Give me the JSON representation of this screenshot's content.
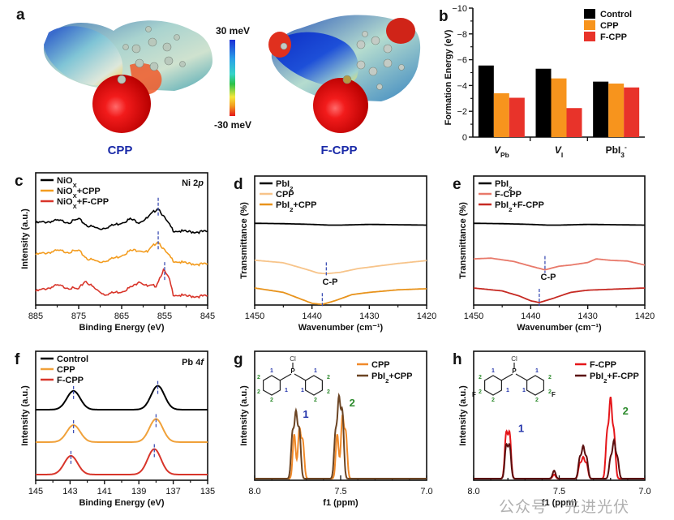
{
  "figure": {
    "watermark": "公众号 · 先进光伏",
    "panel_a": {
      "letter": "a",
      "colorbar_max": "30 meV",
      "colorbar_min": "-30 meV",
      "molecules": [
        "CPP",
        "F-CPP"
      ],
      "colormap": [
        "#1b2fd6",
        "#2aa0e8",
        "#36d3c8",
        "#2bc24a",
        "#f4e73a",
        "#f39a1e",
        "#e5161a"
      ]
    }
  },
  "chart_data": [
    {
      "panel": "b",
      "type": "bar",
      "title": "",
      "xlabel": "",
      "ylabel": "Formation Energy (eV)",
      "ylim": [
        0,
        -10
      ],
      "yticks": [
        "0",
        "-2",
        "-4",
        "-6",
        "-8",
        "-10"
      ],
      "categories": [
        "V_Pb",
        "V_I",
        "PbI3-"
      ],
      "category_labels": [
        {
          "main": "V",
          "sub": "Pb",
          "sup": ""
        },
        {
          "main": "V",
          "sub": "I",
          "sup": ""
        },
        {
          "main": "PbI",
          "sub": "3",
          "sup": "-"
        }
      ],
      "series": [
        {
          "name": "Control",
          "color": "#000000",
          "values": [
            -5.55,
            -5.3,
            -4.3
          ]
        },
        {
          "name": "CPP",
          "color": "#f7941d",
          "values": [
            -3.4,
            -4.55,
            -4.15
          ]
        },
        {
          "name": "F-CPP",
          "color": "#e8332a",
          "values": [
            -3.05,
            -2.25,
            -3.85
          ]
        }
      ],
      "legend": "top-right"
    },
    {
      "panel": "c",
      "type": "line",
      "xlabel": "Binding Energy (eV)",
      "ylabel": "Intensity (a.u.)",
      "annotation": "Ni 2p",
      "xlim": [
        885,
        845
      ],
      "xticks": [
        "885",
        "875",
        "865",
        "855",
        "845"
      ],
      "series": [
        {
          "name": "NiOx",
          "color": "#000000",
          "offset": 2,
          "peak_marker": 856.5,
          "x": [
            885,
            880,
            877,
            875,
            873,
            870,
            866,
            863,
            861,
            859,
            857,
            856.5,
            855,
            853,
            850,
            845
          ],
          "y": [
            0.3,
            0.35,
            0.32,
            0.38,
            0.25,
            0.18,
            0.28,
            0.38,
            0.32,
            0.4,
            0.58,
            0.62,
            0.4,
            0.15,
            0.12,
            0.12
          ]
        },
        {
          "name": "NiOx+CPP",
          "color": "#f39c1f",
          "offset": 1,
          "peak_marker": 856.5,
          "x": [
            885,
            880,
            877,
            875,
            873,
            870,
            866,
            863,
            861,
            859,
            857,
            856.5,
            855,
            853,
            850,
            845
          ],
          "y": [
            0.3,
            0.38,
            0.36,
            0.38,
            0.22,
            0.15,
            0.25,
            0.38,
            0.4,
            0.35,
            0.55,
            0.58,
            0.38,
            0.18,
            0.12,
            0.1
          ]
        },
        {
          "name": "NiOx+F-CPP",
          "color": "#d8352a",
          "offset": 0,
          "peak_marker": 855.0,
          "x": [
            885,
            880,
            877,
            875,
            873.5,
            871,
            869,
            865,
            862,
            861,
            859,
            857,
            855.3,
            854,
            853,
            850,
            845
          ],
          "y": [
            0.18,
            0.3,
            0.25,
            0.22,
            0.4,
            0.22,
            0.12,
            0.18,
            0.3,
            0.4,
            0.28,
            0.3,
            0.62,
            0.45,
            0.12,
            0.08,
            0.08
          ]
        }
      ],
      "legend": "top-left"
    },
    {
      "panel": "d",
      "type": "line",
      "xlabel": "Wavenumber (cm-1)",
      "ylabel": "Transmittance (%)",
      "annotation": "C-P",
      "xlim": [
        1450,
        1420
      ],
      "xticks": [
        "1450",
        "1440",
        "1430",
        "1420"
      ],
      "series": [
        {
          "name": "PbI2",
          "color": "#000000",
          "offset": 2,
          "x": [
            1450,
            1445,
            1440,
            1437,
            1435,
            1430,
            1425,
            1420
          ],
          "y": [
            0.55,
            0.54,
            0.52,
            0.5,
            0.5,
            0.52,
            0.51,
            0.5
          ]
        },
        {
          "name": "CPP",
          "color": "#f7c48a",
          "offset": 1,
          "peak_marker": 1437.5,
          "x": [
            1450,
            1445,
            1441,
            1439,
            1437.5,
            1435,
            1432,
            1430,
            1425,
            1420
          ],
          "y": [
            0.65,
            0.58,
            0.4,
            0.3,
            0.28,
            0.32,
            0.42,
            0.46,
            0.56,
            0.64
          ]
        },
        {
          "name": "PbI2+CPP",
          "color": "#e8931c",
          "offset": 0,
          "peak_marker": 1438.2,
          "x": [
            1450,
            1445,
            1442,
            1440,
            1438.2,
            1436,
            1433,
            1430,
            1425,
            1420
          ],
          "y": [
            0.6,
            0.48,
            0.3,
            0.18,
            0.15,
            0.25,
            0.42,
            0.48,
            0.55,
            0.58
          ]
        }
      ],
      "legend": "top-left"
    },
    {
      "panel": "e",
      "type": "line",
      "xlabel": "Wavenumber (cm-1)",
      "ylabel": "Transmittance (%)",
      "annotation": "C-P",
      "xlim": [
        1450,
        1420
      ],
      "xticks": [
        "1450",
        "1440",
        "1430",
        "1420"
      ],
      "series": [
        {
          "name": "PbI2",
          "color": "#000000",
          "offset": 2,
          "x": [
            1450,
            1445,
            1440,
            1437,
            1435,
            1430,
            1425,
            1420
          ],
          "y": [
            0.55,
            0.54,
            0.52,
            0.5,
            0.5,
            0.52,
            0.51,
            0.5
          ]
        },
        {
          "name": "F-CPP",
          "color": "#e8796a",
          "offset": 1,
          "peak_marker": 1437.5,
          "x": [
            1450,
            1447,
            1443,
            1440,
            1437.5,
            1435,
            1433,
            1430,
            1428.5,
            1426,
            1423,
            1420
          ],
          "y": [
            0.62,
            0.64,
            0.55,
            0.42,
            0.32,
            0.42,
            0.45,
            0.52,
            0.62,
            0.58,
            0.56,
            0.45
          ]
        },
        {
          "name": "PbI2+F-CPP",
          "color": "#c62a23",
          "offset": 0,
          "peak_marker": 1438.5,
          "x": [
            1450,
            1445,
            1442,
            1440,
            1438.5,
            1436,
            1433,
            1430,
            1425,
            1420
          ],
          "y": [
            0.6,
            0.52,
            0.38,
            0.25,
            0.2,
            0.32,
            0.48,
            0.54,
            0.57,
            0.6
          ]
        }
      ],
      "legend": "top-left"
    },
    {
      "panel": "f",
      "type": "line",
      "xlabel": "Binding Energy (eV)",
      "ylabel": "Intensity (a.u.)",
      "annotation": "Pb 4f",
      "xlim": [
        145,
        135
      ],
      "xticks": [
        "145",
        "143",
        "141",
        "139",
        "137",
        "135"
      ],
      "series": [
        {
          "name": "Control",
          "color": "#000000",
          "offset": 2,
          "peaks": [
            142.8,
            137.9
          ],
          "heights": [
            0.55,
            0.7
          ]
        },
        {
          "name": "CPP",
          "color": "#f0a13a",
          "offset": 1,
          "peaks": [
            142.8,
            138.0
          ],
          "heights": [
            0.5,
            0.68
          ]
        },
        {
          "name": "F-CPP",
          "color": "#d8352a",
          "offset": 0,
          "peaks": [
            142.95,
            138.1
          ],
          "heights": [
            0.55,
            0.75
          ]
        }
      ],
      "legend": "top-left"
    },
    {
      "panel": "g",
      "type": "line",
      "xlabel": "f1 (ppm)",
      "ylabel": "Intensity (a.u.)",
      "xlim": [
        8.0,
        7.0
      ],
      "xticks": [
        "8.0",
        "7.5",
        "7.0"
      ],
      "peak_labels": [
        "1",
        "2"
      ],
      "series": [
        {
          "name": "CPP",
          "color": "#f08a2a",
          "peaks": [
            7.77,
            7.74,
            7.72,
            7.52,
            7.49,
            7.47
          ],
          "heights": [
            0.55,
            0.6,
            0.45,
            0.55,
            0.75,
            0.55
          ],
          "width": 0.012
        },
        {
          "name": "PbI2+CPP",
          "color": "#6b4423",
          "peaks": [
            7.78,
            7.76,
            7.74,
            7.53,
            7.51,
            7.49
          ],
          "heights": [
            0.55,
            0.78,
            0.58,
            0.55,
            0.95,
            0.8
          ],
          "width": 0.012
        }
      ],
      "legend": "top-right"
    },
    {
      "panel": "h",
      "type": "line",
      "xlabel": "f1 (ppm)",
      "ylabel": "Intensity (a.u.)",
      "xlim": [
        8.0,
        7.0
      ],
      "xticks": [
        "8.0",
        "7.5",
        "7.0"
      ],
      "peak_labels": [
        "1",
        "2"
      ],
      "series": [
        {
          "name": "F-CPP",
          "color": "#e5161a",
          "peaks": [
            7.81,
            7.79,
            7.53,
            7.38,
            7.36,
            7.34,
            7.22,
            7.2,
            7.18
          ],
          "heights": [
            0.55,
            0.55,
            0.05,
            0.18,
            0.25,
            0.18,
            0.55,
            0.95,
            0.55
          ],
          "width": 0.012
        },
        {
          "name": "PbI2+F-CPP",
          "color": "#5a0d0d",
          "peaks": [
            7.81,
            7.79,
            7.53,
            7.38,
            7.36,
            7.34,
            7.2,
            7.18,
            7.16
          ],
          "heights": [
            0.4,
            0.4,
            0.1,
            0.25,
            0.38,
            0.25,
            0.25,
            0.45,
            0.25
          ],
          "width": 0.012
        }
      ],
      "legend": "top-right"
    }
  ]
}
